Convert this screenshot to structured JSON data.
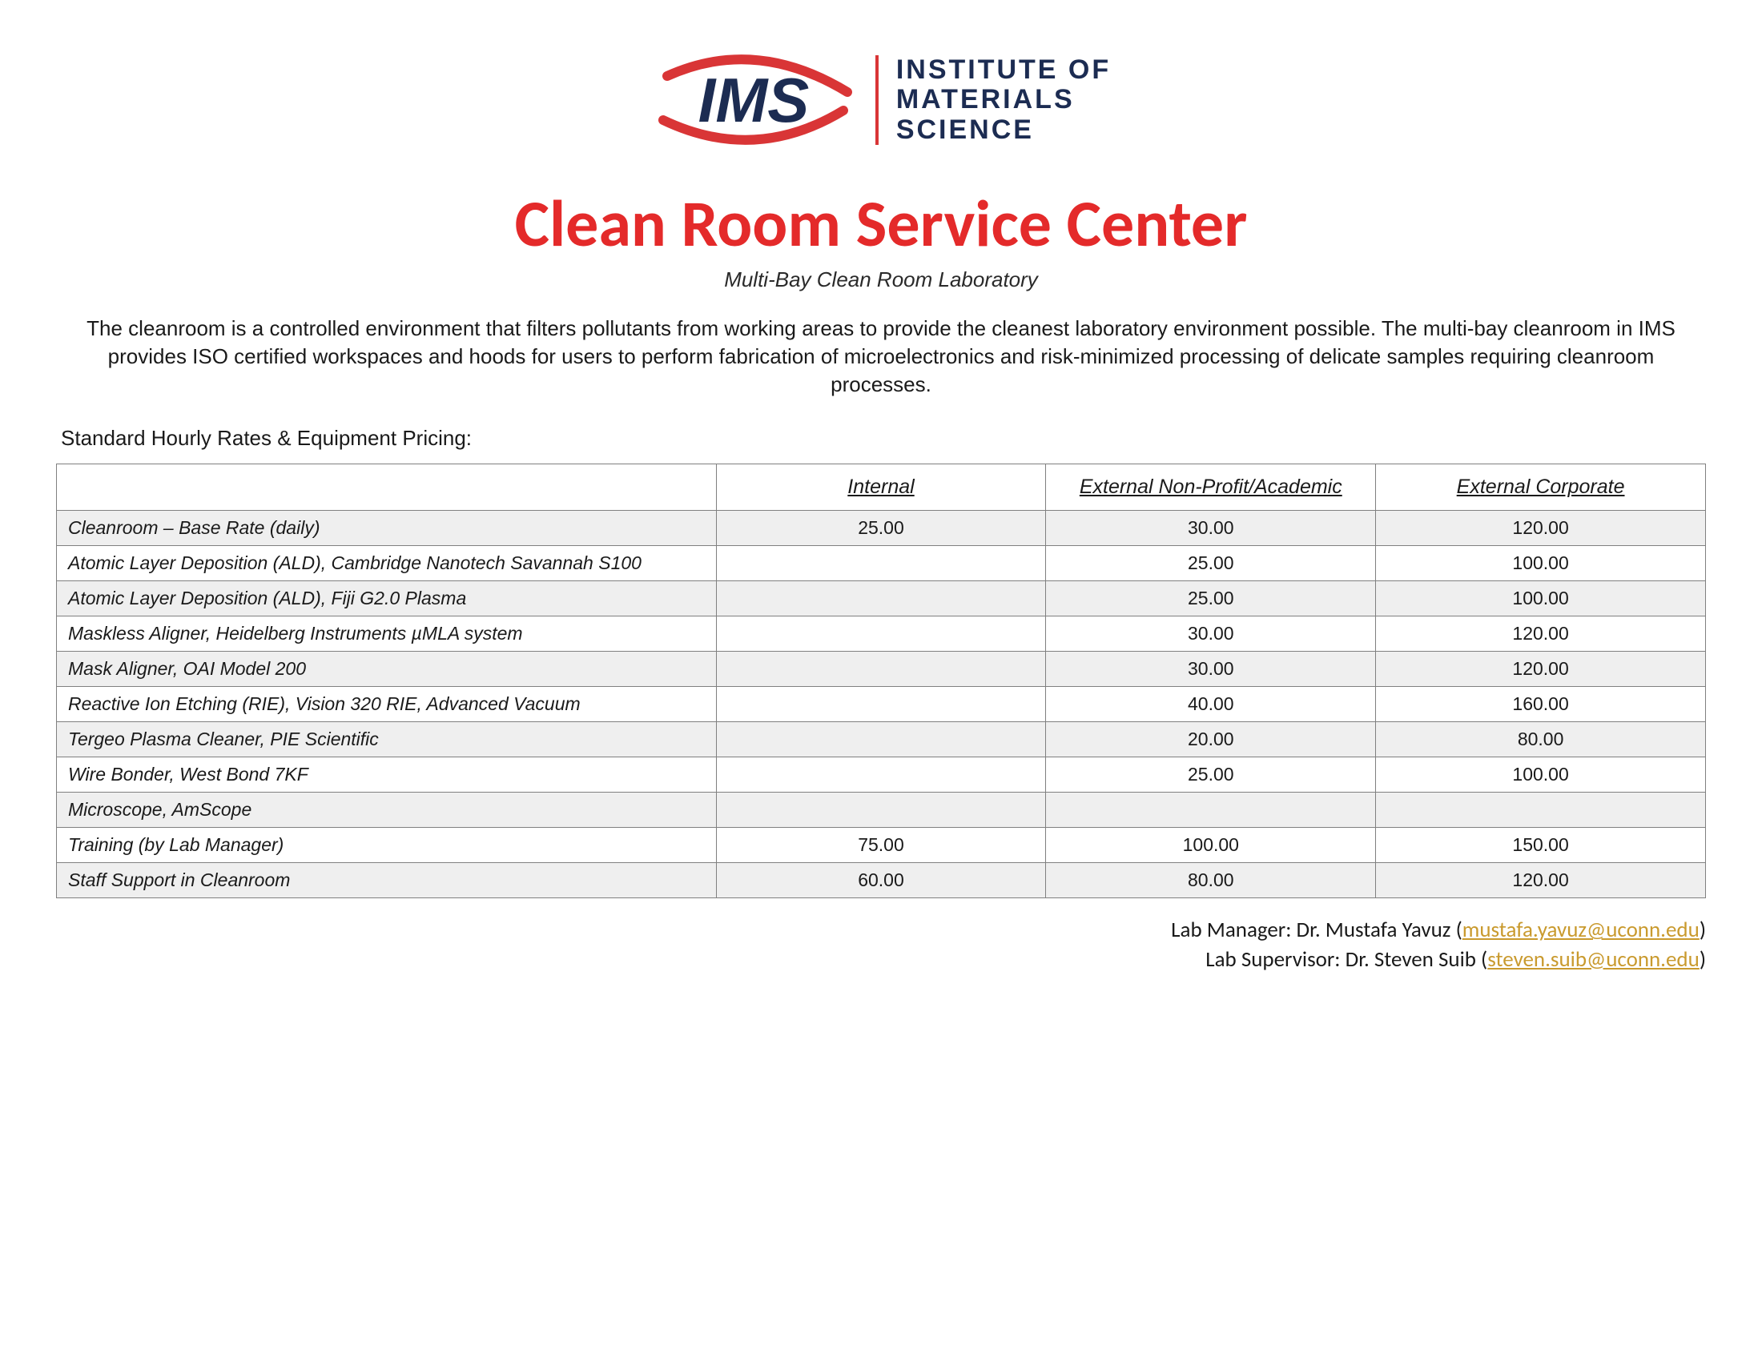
{
  "logo": {
    "acronym": "IMS",
    "line1": "INSTITUTE OF",
    "line2": "MATERIALS",
    "line3": "SCIENCE",
    "text_color": "#1c2c52",
    "swoosh_color": "#d93536",
    "divider_color": "#d93536"
  },
  "title": {
    "text": "Clean Room Service Center",
    "color": "#e42a2a",
    "fontsize": 82
  },
  "subtitle": "Multi-Bay Clean Room Laboratory",
  "description": "The cleanroom is a controlled environment that filters pollutants from working areas to provide the cleanest laboratory environment possible.  The multi-bay cleanroom in IMS provides ISO certified workspaces and hoods for users to perform fabrication of microelectronics and risk-minimized processing of delicate samples requiring cleanroom processes.",
  "section_label": "Standard Hourly Rates & Equipment Pricing:",
  "table": {
    "columns": [
      "",
      "Internal",
      "External Non-Profit/Academic",
      "External Corporate"
    ],
    "rows": [
      {
        "label": "Cleanroom – Base Rate (daily)",
        "values": [
          "25.00",
          "30.00",
          "120.00"
        ]
      },
      {
        "label": "Atomic Layer Deposition (ALD), Cambridge Nanotech Savannah S100",
        "values": [
          "",
          "25.00",
          "100.00"
        ]
      },
      {
        "label": "Atomic Layer Deposition (ALD), Fiji G2.0 Plasma",
        "values": [
          "",
          "25.00",
          "100.00"
        ]
      },
      {
        "label": "Maskless Aligner, Heidelberg Instruments µMLA system",
        "values": [
          "",
          "30.00",
          "120.00"
        ]
      },
      {
        "label": "Mask Aligner, OAI Model 200",
        "values": [
          "",
          "30.00",
          "120.00"
        ]
      },
      {
        "label": "Reactive Ion Etching (RIE), Vision 320 RIE, Advanced Vacuum",
        "values": [
          "",
          "40.00",
          "160.00"
        ]
      },
      {
        "label": "Tergeo Plasma Cleaner, PIE Scientific",
        "values": [
          "",
          "20.00",
          "80.00"
        ]
      },
      {
        "label": "Wire Bonder, West Bond 7KF",
        "values": [
          "",
          "25.00",
          "100.00"
        ]
      },
      {
        "label": "Microscope, AmScope",
        "values": [
          "",
          "",
          ""
        ]
      },
      {
        "label": "Training (by Lab Manager)",
        "values": [
          "75.00",
          "100.00",
          "150.00"
        ]
      },
      {
        "label": "Staff Support in Cleanroom",
        "values": [
          "60.00",
          "80.00",
          "120.00"
        ]
      }
    ],
    "shade_color": "#efefef",
    "border_color": "#808080",
    "header_fontsize": 25,
    "body_fontsize": 23
  },
  "contacts": {
    "manager_label": "Lab Manager: Dr. Mustafa Yavuz",
    "manager_email": "mustafa.yavuz@uconn.edu",
    "supervisor_label": "Lab Supervisor: Dr. Steven Suib",
    "supervisor_email": "steven.suib@uconn.edu",
    "link_color": "#c99a2e"
  }
}
